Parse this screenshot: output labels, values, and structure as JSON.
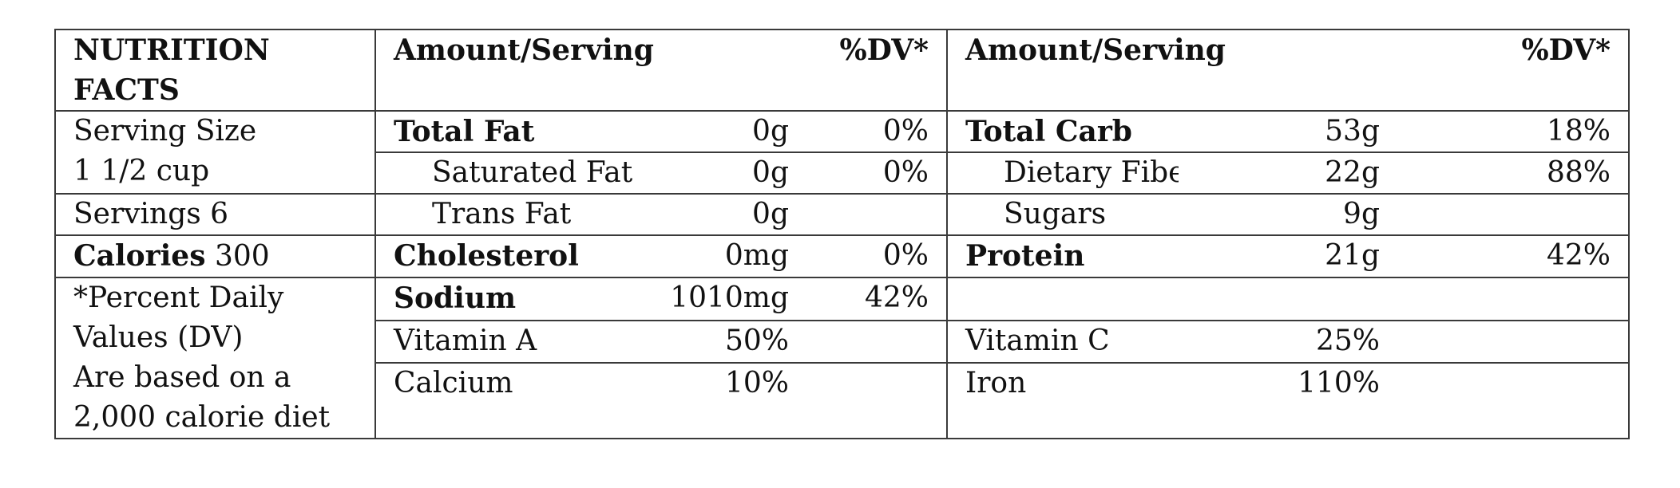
{
  "header": {
    "title_line1": "NUTRITION",
    "title_line2": "FACTS",
    "amount_serving_left": "Amount/Serving",
    "dv_left": "%DV*",
    "amount_serving_right": "Amount/Serving",
    "dv_right": "%DV*"
  },
  "left_panel": {
    "serving_size_label": "Serving Size",
    "serving_size_value": "1 1/2 cup",
    "servings": "Servings 6",
    "calories_label": "Calories",
    "calories_value": "300",
    "footnote_line1": "*Percent Daily",
    "footnote_line2": "Values (DV)",
    "footnote_line3": "Are based on a",
    "footnote_line4": "2,000 calorie diet"
  },
  "nutrients_left": [
    {
      "name": "Total Fat",
      "amount": "0g",
      "dv": "0%"
    },
    {
      "name": "Saturated Fat",
      "amount": "0g",
      "dv": "0%"
    },
    {
      "name": "Trans Fat",
      "amount": "0g",
      "dv": ""
    },
    {
      "name": "Cholesterol",
      "amount": "0mg",
      "dv": "0%"
    },
    {
      "name": "Sodium",
      "amount": "1010mg",
      "dv": "42%"
    }
  ],
  "nutrients_right": [
    {
      "name": "Total Carb",
      "amount": "53g",
      "dv": "18%"
    },
    {
      "name": "Dietary Fiber",
      "amount": "22g",
      "dv": "88%"
    },
    {
      "name": "Sugars",
      "amount": "9g",
      "dv": ""
    },
    {
      "name": "Protein",
      "amount": "21g",
      "dv": "42%"
    }
  ],
  "vitamins": [
    {
      "name": "Vitamin A",
      "value": "50%"
    },
    {
      "name": "Vitamin C",
      "value": "25%"
    },
    {
      "name": "Calcium",
      "value": "10%"
    },
    {
      "name": "Iron",
      "value": "110%"
    }
  ]
}
